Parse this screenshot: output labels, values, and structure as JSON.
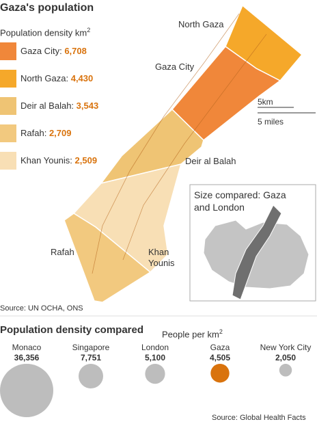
{
  "title": "Gaza's population",
  "legend": {
    "title": "Population density km",
    "title_sup": "2",
    "items": [
      {
        "name": "Gaza City:",
        "value": "6,708",
        "color": "#f0873a"
      },
      {
        "name": "North Gaza:",
        "value": "4,430",
        "color": "#f5a82a"
      },
      {
        "name": "Deir al Balah:",
        "value": "3,543",
        "color": "#efc474"
      },
      {
        "name": "Rafah:",
        "value": "2,709",
        "color": "#f2c97f"
      },
      {
        "name": "Khan Younis:",
        "value": "2,509",
        "color": "#f8dfb5"
      }
    ]
  },
  "map_labels": {
    "north_gaza": "North Gaza",
    "gaza_city": "Gaza City",
    "deir_al_balah": "Deir al Balah",
    "khan_younis": "Khan Younis",
    "rafah": "Rafah"
  },
  "scale": {
    "km": "5km",
    "miles": "5 miles"
  },
  "inset": {
    "title": "Size compared: Gaza and London"
  },
  "source": "Source: UN OCHA, ONS",
  "chart_data": {
    "type": "bubble",
    "title": "Population density compared",
    "unit_label": "People per km",
    "unit_sup": "2",
    "categories": [
      "Monaco",
      "Singapore",
      "London",
      "Gaza",
      "New York City"
    ],
    "values": [
      36356,
      7751,
      5100,
      4505,
      2050
    ],
    "value_labels": [
      "36,356",
      "7,751",
      "5,100",
      "4,505",
      "2,050"
    ],
    "colors": [
      "#bdbdbd",
      "#bdbdbd",
      "#bdbdbd",
      "#d9730d",
      "#bdbdbd"
    ],
    "source": "Source: Global Health Facts"
  }
}
